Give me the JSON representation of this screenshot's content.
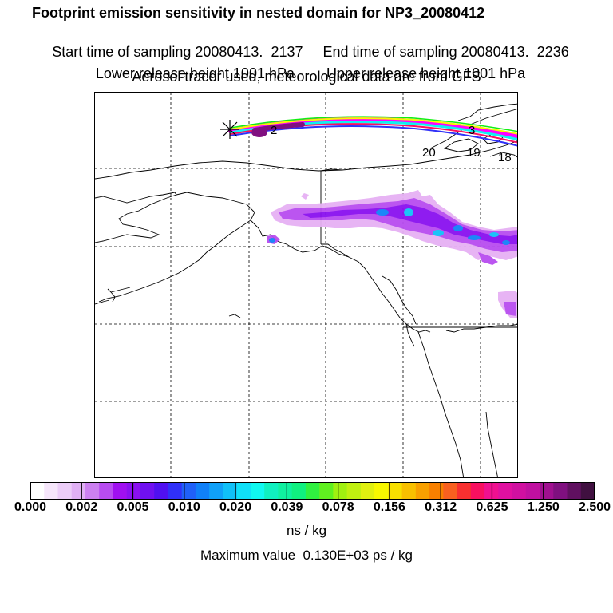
{
  "header": {
    "title": "Footprint emission sensitivity in nested domain for NP3_20080412",
    "start_label": "Start time of sampling 20080413.  2137",
    "end_label": "End time of sampling 20080413.  2236",
    "lower_label": "Lower release height 1001 hPa",
    "upper_label": "Upper release height 1001 hPa",
    "tracer_label": "Aerosol tracer used, meteorological data are from GFS"
  },
  "map": {
    "trajectory_labels": [
      "2",
      "3",
      "20",
      "19",
      "18"
    ]
  },
  "colorbar": {
    "tick_labels": [
      "0.000",
      "0.002",
      "0.005",
      "0.010",
      "0.020",
      "0.039",
      "0.078",
      "0.156",
      "0.312",
      "0.625",
      "1.250",
      "2.500"
    ],
    "units": "ns / kg",
    "colors": [
      "#ffffff",
      "#f6e6fb",
      "#eccdf8",
      "#e0b0f4",
      "#cc80f0",
      "#b84cf0",
      "#a010f0",
      "#8a10f0",
      "#7010f0",
      "#5010f0",
      "#3030f8",
      "#2060f8",
      "#1080f8",
      "#10a0f8",
      "#10c0f8",
      "#10e0f8",
      "#10f8f0",
      "#10f0c0",
      "#10f0a0",
      "#10f080",
      "#30f040",
      "#60f020",
      "#a0f010",
      "#c0f010",
      "#e0f010",
      "#f8f800",
      "#f8e000",
      "#f8c000",
      "#f8a000",
      "#f88000",
      "#f86020",
      "#f83030",
      "#f81060",
      "#f01090",
      "#e010a0",
      "#d010a0",
      "#c010a0",
      "#a01090",
      "#801080",
      "#601060",
      "#401040"
    ],
    "max_value_label": "Maximum value  0.130E+03 ps / kg"
  }
}
